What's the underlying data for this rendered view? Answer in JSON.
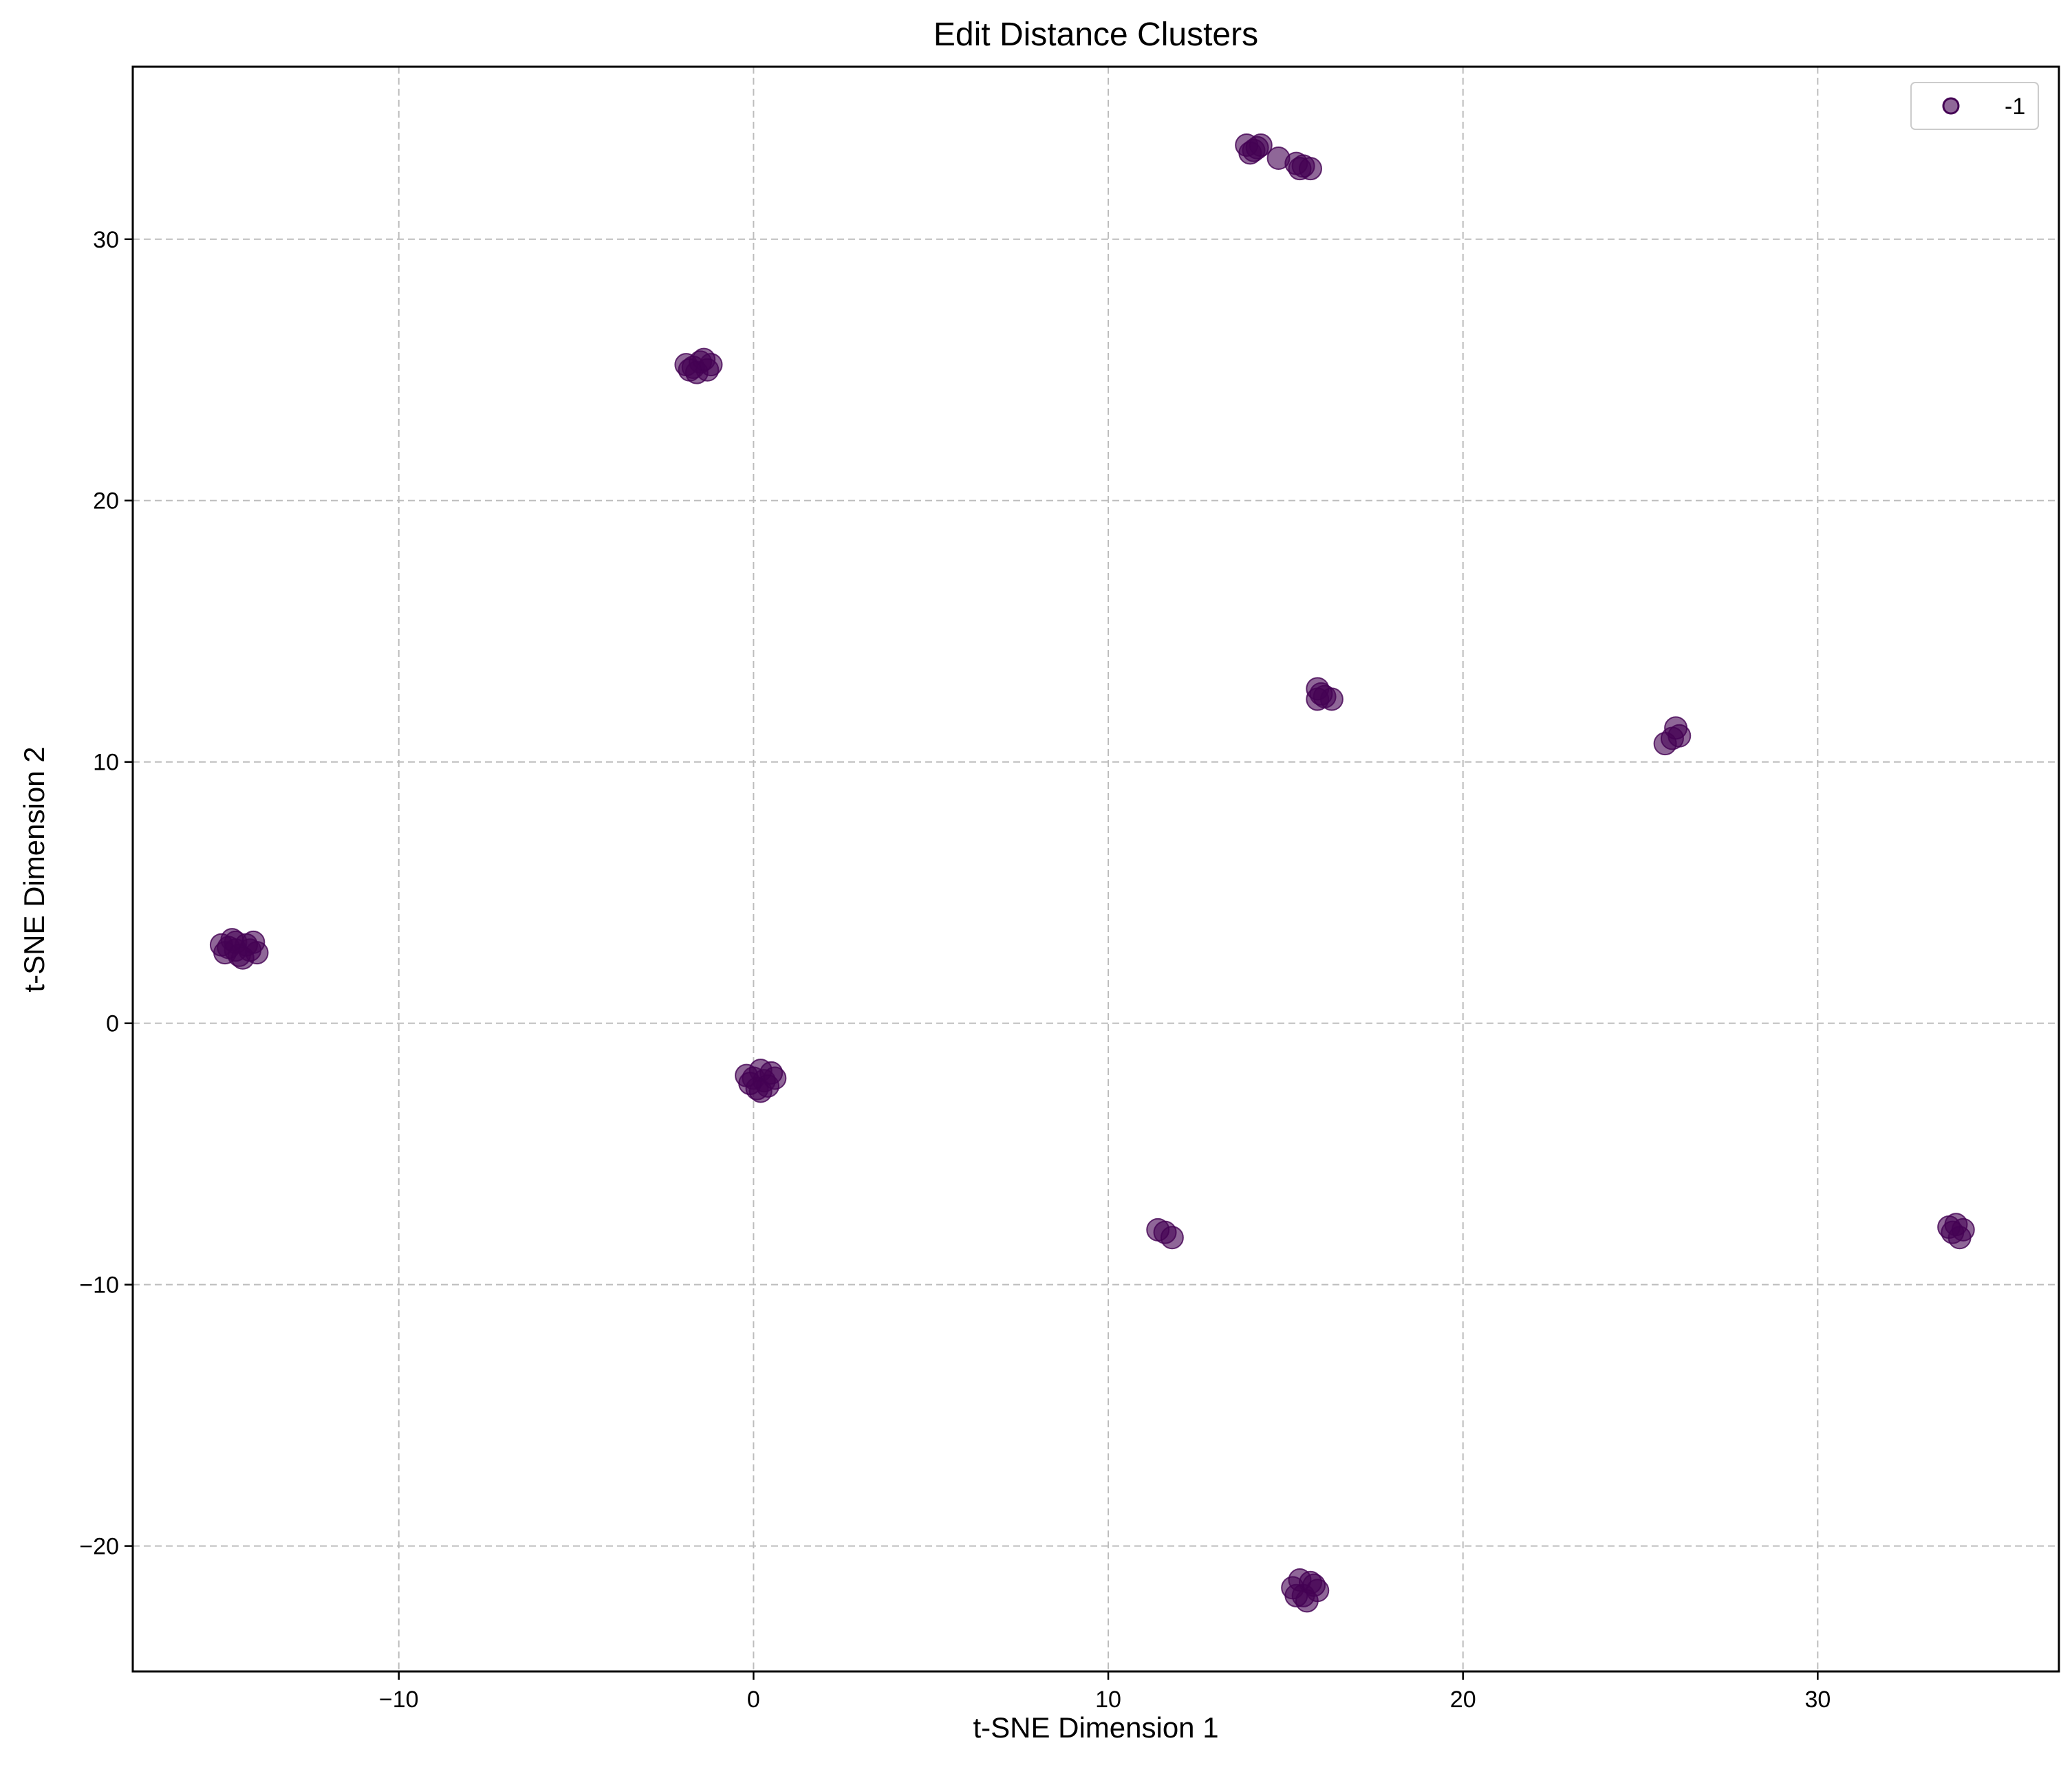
{
  "chart_data": {
    "type": "scatter",
    "title": "Edit Distance Clusters",
    "xlabel": "t-SNE Dimension 1",
    "ylabel": "t-SNE Dimension 2",
    "xlim": [
      -17.5,
      36.8
    ],
    "ylim": [
      -24.8,
      36.6
    ],
    "xticks": [
      -10,
      0,
      10,
      20,
      30
    ],
    "yticks": [
      -20,
      -10,
      0,
      10,
      20,
      30
    ],
    "xtick_labels": [
      "−10",
      "0",
      "10",
      "20",
      "30"
    ],
    "ytick_labels": [
      "−20",
      "−10",
      "0",
      "10",
      "20",
      "30"
    ],
    "grid": true,
    "legend_position": "top-right",
    "marker_color": "#440154",
    "marker_alpha": 0.6,
    "series": [
      {
        "name": "-1",
        "points": [
          [
            -14.8,
            2.9
          ],
          [
            -14.6,
            3.1
          ],
          [
            -14.3,
            3.0
          ],
          [
            -14.9,
            2.7
          ],
          [
            -14.5,
            2.6
          ],
          [
            -14.2,
            2.8
          ],
          [
            -14.0,
            2.7
          ],
          [
            -14.7,
            3.2
          ],
          [
            -14.4,
            2.5
          ],
          [
            -15.0,
            3.0
          ],
          [
            -14.1,
            3.1
          ],
          [
            -14.6,
            2.8
          ],
          [
            -1.7,
            25.1
          ],
          [
            -1.5,
            25.3
          ],
          [
            -1.3,
            25.0
          ],
          [
            -1.9,
            25.2
          ],
          [
            -1.6,
            24.9
          ],
          [
            -1.2,
            25.2
          ],
          [
            -1.4,
            25.4
          ],
          [
            -1.8,
            25.0
          ],
          [
            0.0,
            -2.1
          ],
          [
            0.2,
            -1.8
          ],
          [
            0.4,
            -2.4
          ],
          [
            -0.2,
            -2.0
          ],
          [
            0.3,
            -2.2
          ],
          [
            0.1,
            -2.5
          ],
          [
            0.6,
            -2.1
          ],
          [
            0.2,
            -2.6
          ],
          [
            -0.1,
            -2.3
          ],
          [
            0.5,
            -1.9
          ],
          [
            13.9,
            33.6
          ],
          [
            14.1,
            33.4
          ],
          [
            14.3,
            33.6
          ],
          [
            14.0,
            33.3
          ],
          [
            14.2,
            33.5
          ],
          [
            14.8,
            33.1
          ],
          [
            15.3,
            32.9
          ],
          [
            15.5,
            32.8
          ],
          [
            15.7,
            32.7
          ],
          [
            15.4,
            32.7
          ],
          [
            15.9,
            12.8
          ],
          [
            16.1,
            12.5
          ],
          [
            16.3,
            12.4
          ],
          [
            15.9,
            12.4
          ],
          [
            16.0,
            12.6
          ],
          [
            25.7,
            10.7
          ],
          [
            25.9,
            10.9
          ],
          [
            26.1,
            11.0
          ],
          [
            26.0,
            11.3
          ],
          [
            11.4,
            -7.9
          ],
          [
            11.6,
            -8.0
          ],
          [
            11.8,
            -8.2
          ],
          [
            33.7,
            -7.8
          ],
          [
            33.9,
            -7.7
          ],
          [
            34.1,
            -7.9
          ],
          [
            33.8,
            -8.0
          ],
          [
            34.0,
            -8.2
          ],
          [
            15.2,
            -21.6
          ],
          [
            15.5,
            -21.9
          ],
          [
            15.7,
            -21.4
          ],
          [
            15.4,
            -21.3
          ],
          [
            15.9,
            -21.7
          ],
          [
            15.6,
            -22.1
          ],
          [
            15.3,
            -21.9
          ],
          [
            15.8,
            -21.5
          ]
        ]
      }
    ]
  }
}
